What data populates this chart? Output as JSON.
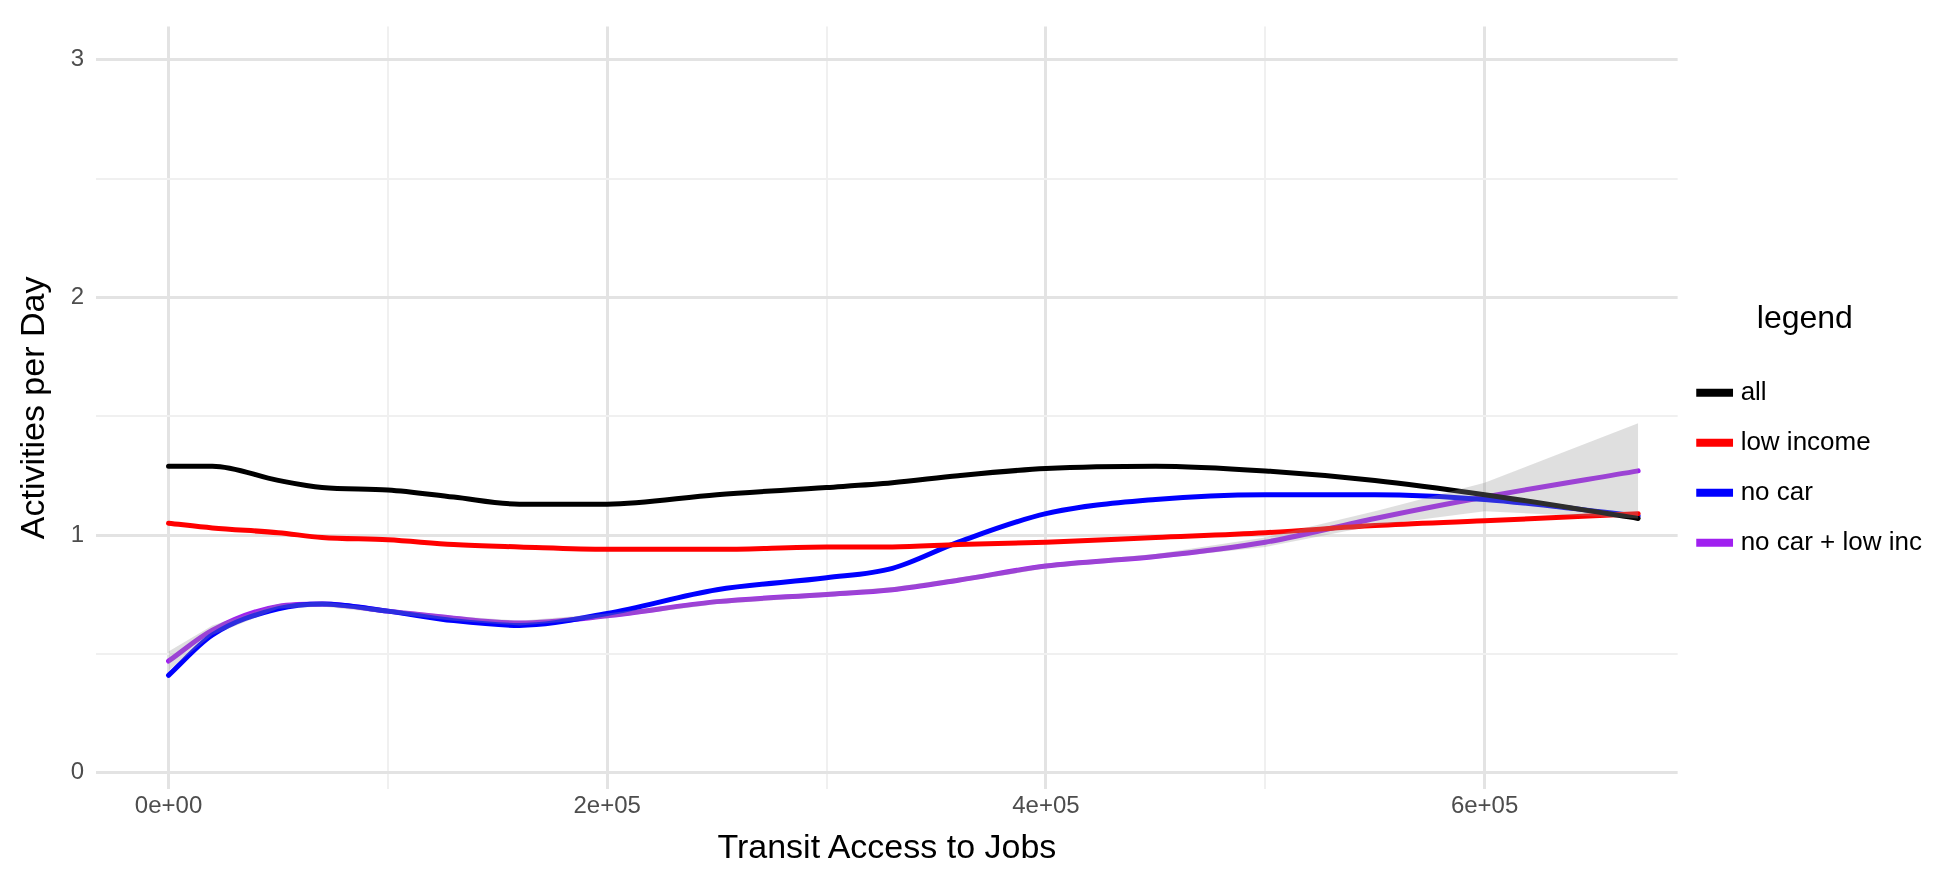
{
  "chart_data": {
    "type": "line",
    "xlabel": "Transit Access to Jobs",
    "ylabel": "Activities per Day",
    "legend_title": "legend",
    "legend": "right",
    "grid": true,
    "marker": "none",
    "line_style": "solid",
    "xlim": [
      -33000,
      688000
    ],
    "ylim": [
      -0.07,
      3.14
    ],
    "xticks": [
      {
        "value": 0,
        "label": "0e+00"
      },
      {
        "value": 100000,
        "label": null
      },
      {
        "value": 200000,
        "label": "2e+05"
      },
      {
        "value": 300000,
        "label": null
      },
      {
        "value": 400000,
        "label": "4e+05"
      },
      {
        "value": 500000,
        "label": null
      },
      {
        "value": 600000,
        "label": "6e+05"
      }
    ],
    "yticks": [
      0,
      {
        "value": 0.5,
        "label": null
      },
      1,
      {
        "value": 1.5,
        "label": null
      },
      2,
      {
        "value": 2.5,
        "label": null
      },
      3
    ],
    "x": [
      0,
      20000,
      50000,
      70000,
      100000,
      130000,
      160000,
      200000,
      250000,
      300000,
      330000,
      360000,
      400000,
      450000,
      500000,
      550000,
      600000,
      670000
    ],
    "series": [
      {
        "name": "all",
        "color": "#000000",
        "values": [
          1.29,
          1.29,
          1.23,
          1.2,
          1.19,
          1.16,
          1.13,
          1.13,
          1.17,
          1.2,
          1.22,
          1.25,
          1.28,
          1.29,
          1.27,
          1.23,
          1.17,
          1.07
        ]
      },
      {
        "name": "low income",
        "color": "#ff0000",
        "values": [
          1.05,
          1.03,
          1.01,
          0.99,
          0.98,
          0.96,
          0.95,
          0.94,
          0.94,
          0.95,
          0.95,
          0.96,
          0.97,
          0.99,
          1.01,
          1.04,
          1.06,
          1.09
        ]
      },
      {
        "name": "no car",
        "color": "#0000ff",
        "values": [
          0.41,
          0.58,
          0.69,
          0.71,
          0.68,
          0.64,
          0.62,
          0.67,
          0.77,
          0.82,
          0.86,
          0.97,
          1.09,
          1.15,
          1.17,
          1.17,
          1.15,
          1.08
        ]
      },
      {
        "name": "no car + low inc",
        "color": "#a020f0",
        "values": [
          0.47,
          0.6,
          0.7,
          0.71,
          0.68,
          0.65,
          0.63,
          0.66,
          0.72,
          0.75,
          0.77,
          0.81,
          0.87,
          0.91,
          0.97,
          1.07,
          1.16,
          1.27
        ],
        "lower": [
          0.43,
          0.58,
          0.69,
          0.7,
          0.67,
          0.64,
          0.62,
          0.65,
          0.71,
          0.74,
          0.76,
          0.8,
          0.86,
          0.9,
          0.95,
          1.04,
          1.1,
          1.07
        ],
        "upper": [
          0.51,
          0.62,
          0.71,
          0.72,
          0.69,
          0.66,
          0.64,
          0.67,
          0.73,
          0.76,
          0.78,
          0.82,
          0.88,
          0.92,
          0.99,
          1.1,
          1.22,
          1.47
        ]
      }
    ]
  }
}
